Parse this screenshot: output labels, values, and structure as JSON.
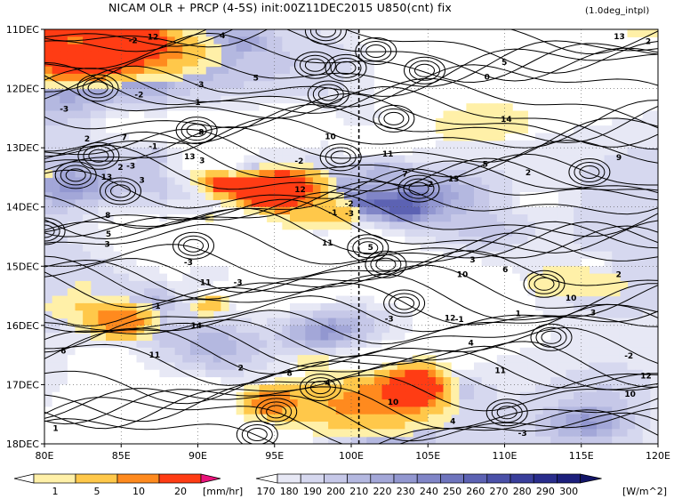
{
  "header": {
    "title": "NICAM  OLR + PRCP (4-5S) init:00Z11DEC2015 U850(cnt) fix",
    "note": "(1.0deg_intpl)"
  },
  "chart_data": {
    "type": "heatmap",
    "title": "NICAM  OLR + PRCP (4-5S) init:00Z11DEC2015 U850(cnt) fix",
    "subtitle": "(1.0deg_intpl)",
    "x_axis": {
      "ticks": [
        "80E",
        "85E",
        "90E",
        "95E",
        "100E",
        "105E",
        "110E",
        "115E",
        "120E"
      ],
      "values": [
        80,
        85,
        90,
        95,
        100,
        105,
        110,
        115,
        120
      ],
      "range": [
        80,
        120
      ]
    },
    "y_axis": {
      "ticks": [
        "11DEC",
        "12DEC",
        "13DEC",
        "14DEC",
        "15DEC",
        "16DEC",
        "17DEC",
        "18DEC"
      ],
      "values": [
        0,
        1,
        2,
        3,
        4,
        5,
        6,
        7
      ],
      "range": [
        0,
        7
      ],
      "inverted": true
    },
    "reference_line_x": 100.5,
    "grid": true,
    "precip_colorbar": {
      "levels": [
        "1",
        "5",
        "10",
        "20"
      ],
      "unit": "[mm/hr]",
      "colors": [
        "#ffffff",
        "#fff0a8",
        "#ffc84a",
        "#ff8a1e",
        "#ff3c14",
        "#e8127a"
      ]
    },
    "olr_colorbar": {
      "levels": [
        "170",
        "180",
        "190",
        "200",
        "210",
        "220",
        "230",
        "240",
        "250",
        "260",
        "270",
        "280",
        "290",
        "300"
      ],
      "unit": "[W/m^2]",
      "colors": [
        "#ffffff",
        "#e7e8f5",
        "#d6d8ef",
        "#c6c8e8",
        "#b4b8e0",
        "#a3a7d8",
        "#9297d0",
        "#8085c7",
        "#6e74bd",
        "#5c62b3",
        "#4a50a8",
        "#393e9b",
        "#292d8c",
        "#1c1f7c",
        "#121467"
      ]
    },
    "contour_labels": [
      "-3",
      "-2",
      "-1",
      "0",
      "1",
      "2",
      "3",
      "4",
      "5",
      "6",
      "7",
      "8",
      "9",
      "10",
      "11",
      "12",
      "13",
      "14"
    ]
  }
}
